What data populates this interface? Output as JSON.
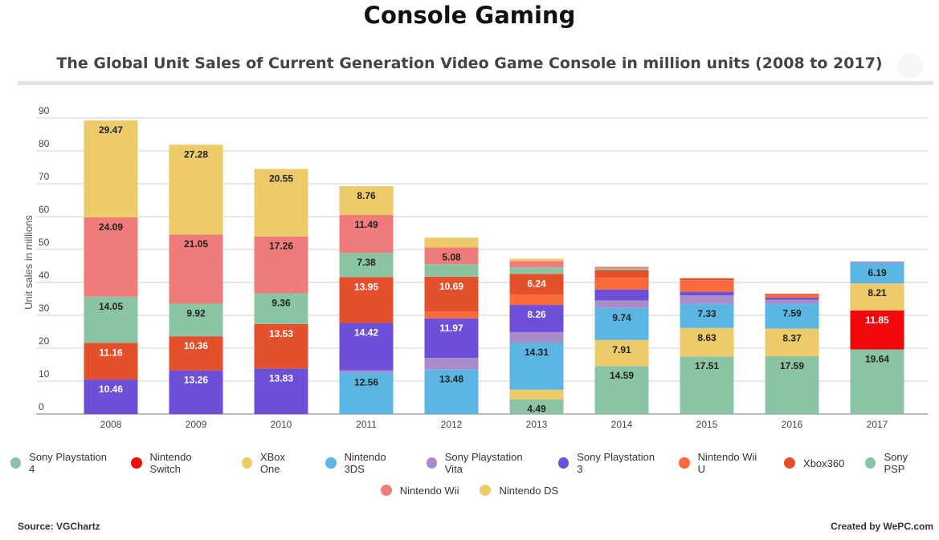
{
  "header": {
    "title": "Console Gaming",
    "subtitle": "The Global Unit Sales of Current Generation Video Game Console in million units (2008 to 2017)"
  },
  "footer": {
    "source": "Source: VGChartz",
    "credit": "Created by WePC.com"
  },
  "legend_rows": [
    [
      {
        "name": "Sony Playstation 4",
        "color": "#8bc4a3"
      },
      {
        "name": "Nintendo Switch",
        "color": "#f2080c"
      },
      {
        "name": "XBox One",
        "color": "#eecb6a"
      },
      {
        "name": "Nintendo 3DS",
        "color": "#5cb6e3"
      },
      {
        "name": "Sony Playstation Vita",
        "color": "#a98ccc"
      },
      {
        "name": "Sony Playstation 3",
        "color": "#6d4fd8"
      },
      {
        "name": "Nintendo Wii U",
        "color": "#fb6a3a"
      },
      {
        "name": "Xbox360",
        "color": "#e4502b"
      },
      {
        "name": "Sony PSP",
        "color": "#8bc4a3"
      }
    ],
    [
      {
        "name": "Nintendo Wii",
        "color": "#f07b7b"
      },
      {
        "name": "Nintendo DS",
        "color": "#eecb6a"
      }
    ]
  ],
  "chart_data": {
    "type": "bar",
    "stacked": true,
    "title": "The Global Unit Sales of Current Generation Video Game Console in million units (2008 to 2017)",
    "ylabel": "Unit sales in millions",
    "xlabel": "",
    "ylim": [
      0,
      90
    ],
    "yticks": [
      0,
      10,
      20,
      30,
      40,
      50,
      60,
      70,
      80,
      90
    ],
    "grid": true,
    "legend_position": "bottom",
    "categories": [
      "2008",
      "2009",
      "2010",
      "2011",
      "2012",
      "2013",
      "2014",
      "2015",
      "2016",
      "2017"
    ],
    "series": [
      {
        "name": "Sony Playstation 4",
        "color": "#8bc4a3",
        "values": [
          0,
          0,
          0,
          0,
          0,
          4.49,
          14.59,
          17.51,
          17.59,
          19.64
        ],
        "labels": [
          null,
          null,
          null,
          null,
          null,
          "4.49",
          "14.59",
          "17.51",
          "17.59",
          "19.64"
        ]
      },
      {
        "name": "Nintendo Switch",
        "color": "#f2080c",
        "values": [
          0,
          0,
          0,
          0,
          0,
          0,
          0,
          0,
          0,
          11.85
        ],
        "labels": [
          null,
          null,
          null,
          null,
          null,
          null,
          null,
          null,
          null,
          "11.85"
        ]
      },
      {
        "name": "XBox One",
        "color": "#eecb6a",
        "values": [
          0,
          0,
          0,
          0,
          0,
          2.9,
          7.91,
          8.63,
          8.37,
          8.21
        ],
        "labels": [
          null,
          null,
          null,
          null,
          null,
          null,
          "7.91",
          "8.63",
          "8.37",
          "8.21"
        ]
      },
      {
        "name": "Nintendo 3DS",
        "color": "#5cb6e3",
        "values": [
          0,
          0,
          0,
          12.56,
          13.48,
          14.31,
          9.74,
          7.33,
          7.59,
          6.19
        ],
        "labels": [
          null,
          null,
          null,
          "12.56",
          "13.48",
          "14.31",
          "9.74",
          "7.33",
          "7.59",
          "6.19"
        ]
      },
      {
        "name": "Sony Playstation Vita",
        "color": "#a98ccc",
        "values": [
          0,
          0,
          0,
          0.7,
          3.6,
          3.2,
          2.3,
          2.6,
          1.2,
          0.2
        ],
        "labels": [
          null,
          null,
          null,
          null,
          null,
          null,
          null,
          null,
          null,
          null
        ]
      },
      {
        "name": "Sony Playstation 3",
        "color": "#6d4fd8",
        "values": [
          10.46,
          13.26,
          13.83,
          14.42,
          11.97,
          8.26,
          3.3,
          1.1,
          0.6,
          0.2
        ],
        "labels": [
          "10.46",
          "13.26",
          "13.83",
          "14.42",
          "11.97",
          "8.26",
          null,
          null,
          null,
          null
        ]
      },
      {
        "name": "Nintendo Wii U",
        "color": "#fb6a3a",
        "values": [
          0,
          0,
          0,
          0,
          2.0,
          3.2,
          3.6,
          3.5,
          0.9,
          0
        ],
        "labels": [
          null,
          null,
          null,
          null,
          null,
          null,
          null,
          null,
          null,
          null
        ]
      },
      {
        "name": "Xbox360",
        "color": "#e4502b",
        "values": [
          11.16,
          10.36,
          13.53,
          13.95,
          10.69,
          6.24,
          2.3,
          0.6,
          0.3,
          0
        ],
        "labels": [
          "11.16",
          "10.36",
          "13.53",
          "13.95",
          "10.69",
          "6.24",
          null,
          null,
          null,
          null
        ]
      },
      {
        "name": "Sony PSP",
        "color": "#8bc4a3",
        "values": [
          14.05,
          9.92,
          9.36,
          7.38,
          3.8,
          2.0,
          0.5,
          0,
          0,
          0
        ],
        "labels": [
          "14.05",
          "9.92",
          "9.36",
          "7.38",
          null,
          null,
          null,
          null,
          null,
          null
        ]
      },
      {
        "name": "Nintendo Wii",
        "color": "#f07b7b",
        "values": [
          24.09,
          21.05,
          17.26,
          11.49,
          5.08,
          1.9,
          0.5,
          0,
          0,
          0
        ],
        "labels": [
          "24.09",
          "21.05",
          "17.26",
          "11.49",
          "5.08",
          null,
          null,
          null,
          null,
          null
        ]
      },
      {
        "name": "Nintendo DS",
        "color": "#eecb6a",
        "values": [
          29.47,
          27.28,
          20.55,
          8.76,
          3.0,
          0.7,
          0,
          0,
          0,
          0
        ],
        "labels": [
          "29.47",
          "27.28",
          "20.55",
          "8.76",
          null,
          null,
          null,
          null,
          null,
          null
        ]
      }
    ]
  }
}
